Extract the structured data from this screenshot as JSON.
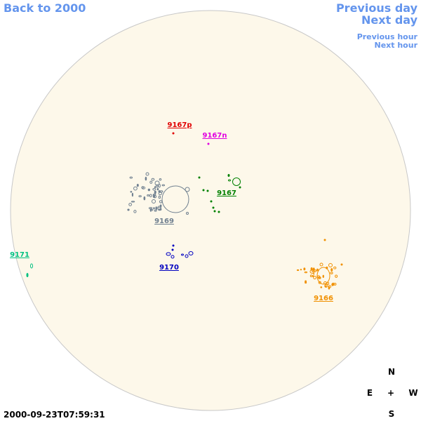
{
  "nav": {
    "back": "Back to 2000",
    "previous_day": "Previous day",
    "next_day": "Next day",
    "previous_hour": "Previous hour",
    "next_hour": "Next hour"
  },
  "regions": [
    {
      "label": "9167p",
      "color": "#e00000"
    },
    {
      "label": "9167n",
      "color": "#e000e0"
    },
    {
      "label": "9167",
      "color": "#008000"
    },
    {
      "label": "9169",
      "color": "#708090"
    },
    {
      "label": "9170",
      "color": "#0000c0"
    },
    {
      "label": "9171",
      "color": "#00c080"
    },
    {
      "label": "9166",
      "color": "#f09000"
    }
  ],
  "compass": {
    "north": "N",
    "east": "E",
    "center": "+",
    "west": "W",
    "south": "S"
  },
  "timestamp": "2000-09-23T07:59:31"
}
